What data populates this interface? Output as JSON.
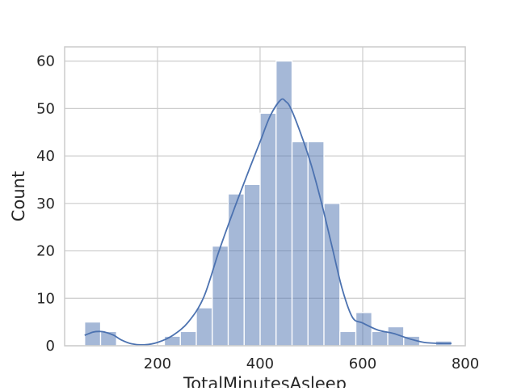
{
  "chart_data": {
    "type": "bar",
    "subtype": "histogram-with-kde",
    "title": "",
    "xlabel": "TotalMinutesAsleep",
    "ylabel": "Count",
    "xlim": [
      19,
      800
    ],
    "ylim": [
      0,
      63
    ],
    "xticks": [
      200,
      400,
      600,
      800
    ],
    "yticks": [
      0,
      10,
      20,
      30,
      40,
      50,
      60
    ],
    "grid": true,
    "legend": "none",
    "bin_width": 31.1,
    "bins": [
      {
        "x0": 58.0,
        "x1": 89.1,
        "count": 5
      },
      {
        "x0": 89.1,
        "x1": 120.2,
        "count": 3
      },
      {
        "x0": 120.2,
        "x1": 151.3,
        "count": 0
      },
      {
        "x0": 151.3,
        "x1": 182.4,
        "count": 0
      },
      {
        "x0": 182.4,
        "x1": 213.5,
        "count": 0
      },
      {
        "x0": 213.5,
        "x1": 244.6,
        "count": 2
      },
      {
        "x0": 244.6,
        "x1": 275.7,
        "count": 3
      },
      {
        "x0": 275.7,
        "x1": 306.8,
        "count": 8
      },
      {
        "x0": 306.8,
        "x1": 337.9,
        "count": 21
      },
      {
        "x0": 337.9,
        "x1": 369.0,
        "count": 32
      },
      {
        "x0": 369.0,
        "x1": 400.1,
        "count": 34
      },
      {
        "x0": 400.1,
        "x1": 431.2,
        "count": 49
      },
      {
        "x0": 431.2,
        "x1": 462.3,
        "count": 60
      },
      {
        "x0": 462.3,
        "x1": 493.4,
        "count": 43
      },
      {
        "x0": 493.4,
        "x1": 524.5,
        "count": 43
      },
      {
        "x0": 524.5,
        "x1": 555.6,
        "count": 30
      },
      {
        "x0": 555.6,
        "x1": 586.7,
        "count": 3
      },
      {
        "x0": 586.7,
        "x1": 617.8,
        "count": 7
      },
      {
        "x0": 617.8,
        "x1": 648.9,
        "count": 3
      },
      {
        "x0": 648.9,
        "x1": 680.0,
        "count": 4
      },
      {
        "x0": 680.0,
        "x1": 711.1,
        "count": 2
      },
      {
        "x0": 711.1,
        "x1": 742.2,
        "count": 0
      },
      {
        "x0": 742.2,
        "x1": 773.3,
        "count": 1
      }
    ],
    "kde": {
      "x": [
        58,
        75,
        90,
        100,
        115,
        130,
        150,
        175,
        200,
        230,
        260,
        290,
        320,
        350,
        380,
        400,
        420,
        440,
        450,
        460,
        480,
        500,
        520,
        540,
        560,
        580,
        600,
        630,
        660,
        690,
        720,
        750,
        773
      ],
      "y": [
        2.2,
        2.9,
        3.0,
        2.8,
        2.2,
        1.2,
        0.4,
        0.2,
        0.7,
        2.2,
        5.0,
        10.2,
        20.0,
        29.0,
        37.5,
        43.0,
        48.5,
        51.8,
        51.5,
        50.0,
        44.5,
        38.0,
        30.0,
        21.0,
        12.0,
        6.0,
        4.8,
        3.3,
        2.6,
        1.5,
        0.7,
        0.5,
        0.5
      ]
    },
    "colors": {
      "bar_fill": "#4c72b0",
      "bar_opacity": 0.5,
      "kde_line": "#4c72b0",
      "grid": "#cccccc",
      "spine": "#cccccc",
      "text": "#262626"
    }
  }
}
